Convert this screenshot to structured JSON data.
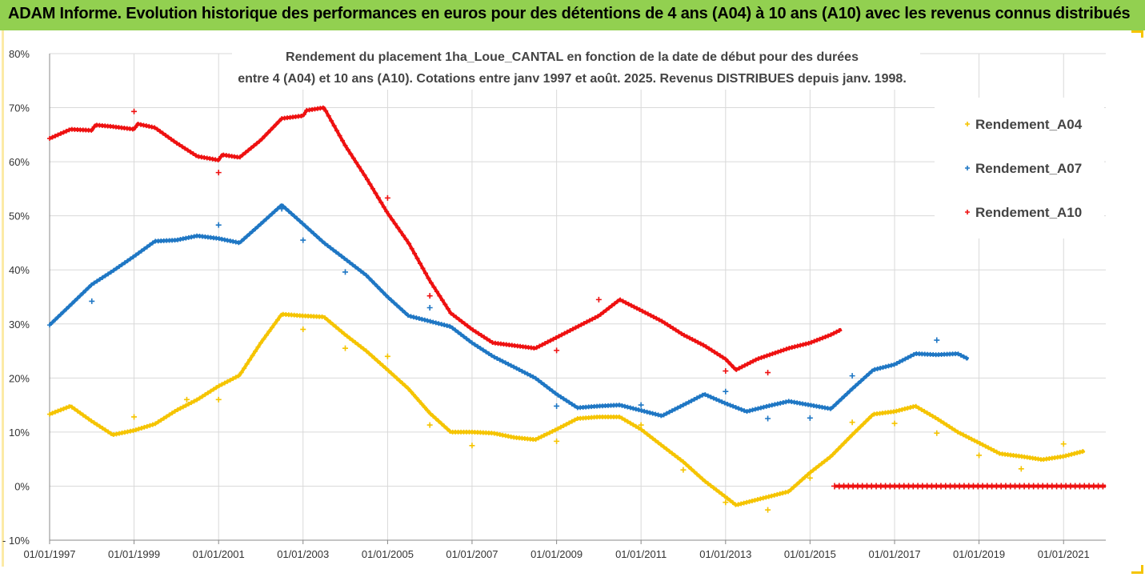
{
  "banner": {
    "title": "ADAM Informe. Evolution historique des performances en euros pour des détentions de 4 ans (A04) à 10 ans (A10) avec les revenus connus distribués"
  },
  "colors": {
    "banner_bg": "#92d050",
    "A04": "#f5c400",
    "A07": "#1f77c4",
    "A10": "#ee1111",
    "grid": "#d9d9d9"
  },
  "chart_data": {
    "type": "scatter",
    "title_lines": [
      "Rendement du placement 1ha_Loue_CANTAL en fonction de la date de début pour des durées",
      "entre 4 (A04) et 10 ans (A10). Cotations entre janv 1997 et août. 2025. Revenus DISTRIBUES depuis janv. 1998."
    ],
    "xlabel": "",
    "ylabel": "",
    "x_ticks": [
      "01/01/1997",
      "01/01/1999",
      "01/01/2001",
      "01/01/2003",
      "01/01/2005",
      "01/01/2007",
      "01/01/2009",
      "01/01/2011",
      "01/01/2013",
      "01/01/2015",
      "01/01/2017",
      "01/01/2019",
      "01/01/2021"
    ],
    "y_ticks": [
      "80%",
      "70%",
      "60%",
      "50%",
      "40%",
      "30%",
      "20%",
      "10%",
      "0%",
      "- 10%"
    ],
    "ylim": [
      -10,
      80
    ],
    "xlim": [
      "1997-01-01",
      "2022-01-01"
    ],
    "grid": true,
    "legend_position": "top-right",
    "series": [
      {
        "name": "Rendement_A04",
        "color": "#f5c400",
        "points": [
          [
            "1997-01-01",
            13.3
          ],
          [
            "1997-07-01",
            14.8
          ],
          [
            "1998-01-01",
            12.0
          ],
          [
            "1998-07-01",
            9.5
          ],
          [
            "1999-01-01",
            10.3
          ],
          [
            "1999-07-01",
            11.5
          ],
          [
            "2000-01-01",
            14.0
          ],
          [
            "2000-07-01",
            16.0
          ],
          [
            "2001-01-01",
            18.5
          ],
          [
            "2001-07-01",
            20.5
          ],
          [
            "2002-01-01",
            26.5
          ],
          [
            "2002-07-01",
            31.8
          ],
          [
            "2003-01-01",
            31.5
          ],
          [
            "2003-07-01",
            31.3
          ],
          [
            "2004-01-01",
            28.0
          ],
          [
            "2004-07-01",
            25.0
          ],
          [
            "2005-01-01",
            21.5
          ],
          [
            "2005-07-01",
            18.0
          ],
          [
            "2006-01-01",
            13.5
          ],
          [
            "2006-07-01",
            10.0
          ],
          [
            "2007-01-01",
            10.0
          ],
          [
            "2007-07-01",
            9.8
          ],
          [
            "2008-01-01",
            9.0
          ],
          [
            "2008-07-01",
            8.6
          ],
          [
            "2009-01-01",
            10.5
          ],
          [
            "2009-07-01",
            12.5
          ],
          [
            "2010-01-01",
            12.8
          ],
          [
            "2010-07-01",
            12.8
          ],
          [
            "2011-01-01",
            10.5
          ],
          [
            "2011-07-01",
            7.5
          ],
          [
            "2012-01-01",
            4.5
          ],
          [
            "2012-07-01",
            1.0
          ],
          [
            "2013-01-01",
            -2.0
          ],
          [
            "2013-04-01",
            -3.5
          ],
          [
            "2013-10-01",
            -2.5
          ],
          [
            "2014-07-01",
            -1.0
          ],
          [
            "2015-01-01",
            2.5
          ],
          [
            "2015-07-01",
            5.5
          ],
          [
            "2016-01-01",
            9.5
          ],
          [
            "2016-07-01",
            13.3
          ],
          [
            "2017-01-01",
            13.8
          ],
          [
            "2017-07-01",
            14.8
          ],
          [
            "2018-01-01",
            12.5
          ],
          [
            "2018-07-01",
            10.0
          ],
          [
            "2019-01-01",
            8.0
          ],
          [
            "2019-07-01",
            6.0
          ],
          [
            "2020-01-01",
            5.5
          ],
          [
            "2020-07-01",
            4.9
          ],
          [
            "2021-01-01",
            5.5
          ],
          [
            "2021-07-01",
            6.5
          ]
        ],
        "outliers": [
          [
            "1999-01-01",
            12.8
          ],
          [
            "2000-04-01",
            16.0
          ],
          [
            "2001-01-01",
            16.0
          ],
          [
            "2003-01-01",
            29.0
          ],
          [
            "2004-01-01",
            25.5
          ],
          [
            "2005-01-01",
            24.0
          ],
          [
            "2006-01-01",
            11.3
          ],
          [
            "2007-01-01",
            7.5
          ],
          [
            "2009-01-01",
            8.3
          ],
          [
            "2011-01-01",
            11.3
          ],
          [
            "2012-01-01",
            3.0
          ],
          [
            "2013-01-01",
            -3.0
          ],
          [
            "2014-01-01",
            -4.4
          ],
          [
            "2015-01-01",
            1.5
          ],
          [
            "2016-01-01",
            11.8
          ],
          [
            "2017-01-01",
            11.6
          ],
          [
            "2018-01-01",
            9.8
          ],
          [
            "2019-01-01",
            5.7
          ],
          [
            "2020-01-01",
            3.2
          ],
          [
            "2021-01-01",
            7.8
          ]
        ]
      },
      {
        "name": "Rendement_A07",
        "color": "#1f77c4",
        "points": [
          [
            "1997-01-01",
            29.8
          ],
          [
            "1997-07-01",
            33.5
          ],
          [
            "1998-01-01",
            37.3
          ],
          [
            "1998-07-01",
            39.8
          ],
          [
            "1999-01-01",
            42.5
          ],
          [
            "1999-07-01",
            45.3
          ],
          [
            "2000-01-01",
            45.5
          ],
          [
            "2000-07-01",
            46.3
          ],
          [
            "2001-01-01",
            45.8
          ],
          [
            "2001-07-01",
            45.0
          ],
          [
            "2002-01-01",
            48.5
          ],
          [
            "2002-07-01",
            52.0
          ],
          [
            "2003-01-01",
            48.5
          ],
          [
            "2003-07-01",
            45.0
          ],
          [
            "2004-01-01",
            42.0
          ],
          [
            "2004-07-01",
            39.0
          ],
          [
            "2005-01-01",
            35.0
          ],
          [
            "2005-07-01",
            31.5
          ],
          [
            "2006-01-01",
            30.5
          ],
          [
            "2006-07-01",
            29.5
          ],
          [
            "2007-01-01",
            26.5
          ],
          [
            "2007-07-01",
            24.0
          ],
          [
            "2008-01-01",
            22.0
          ],
          [
            "2008-07-01",
            20.0
          ],
          [
            "2009-01-01",
            17.0
          ],
          [
            "2009-07-01",
            14.5
          ],
          [
            "2010-01-01",
            14.8
          ],
          [
            "2010-07-01",
            15.0
          ],
          [
            "2011-01-01",
            14.0
          ],
          [
            "2011-07-01",
            13.0
          ],
          [
            "2012-01-01",
            15.0
          ],
          [
            "2012-07-01",
            17.0
          ],
          [
            "2013-01-01",
            15.3
          ],
          [
            "2013-07-01",
            13.8
          ],
          [
            "2014-01-01",
            14.8
          ],
          [
            "2014-07-01",
            15.7
          ],
          [
            "2015-01-01",
            15.0
          ],
          [
            "2015-07-01",
            14.3
          ],
          [
            "2016-01-01",
            18.0
          ],
          [
            "2016-07-01",
            21.5
          ],
          [
            "2017-01-01",
            22.5
          ],
          [
            "2017-07-01",
            24.5
          ],
          [
            "2018-01-01",
            24.3
          ],
          [
            "2018-07-01",
            24.5
          ],
          [
            "2018-10-01",
            23.5
          ]
        ],
        "outliers": [
          [
            "1998-01-01",
            34.2
          ],
          [
            "2001-01-01",
            48.3
          ],
          [
            "2002-07-01",
            51.3
          ],
          [
            "2003-01-01",
            45.5
          ],
          [
            "2004-01-01",
            39.6
          ],
          [
            "2006-01-01",
            33.0
          ],
          [
            "2009-01-01",
            14.8
          ],
          [
            "2011-01-01",
            15.0
          ],
          [
            "2013-01-01",
            17.5
          ],
          [
            "2014-01-01",
            12.5
          ],
          [
            "2015-01-01",
            12.6
          ],
          [
            "2016-01-01",
            20.4
          ],
          [
            "2018-01-01",
            27.0
          ]
        ]
      },
      {
        "name": "Rendement_A10",
        "color": "#ee1111",
        "points": [
          [
            "1997-01-01",
            64.3
          ],
          [
            "1997-07-01",
            66.0
          ],
          [
            "1998-01-01",
            65.8
          ],
          [
            "1998-02-01",
            66.8
          ],
          [
            "1998-07-01",
            66.5
          ],
          [
            "1999-01-01",
            66.0
          ],
          [
            "1999-02-01",
            67.0
          ],
          [
            "1999-07-01",
            66.3
          ],
          [
            "2000-01-01",
            63.5
          ],
          [
            "2000-07-01",
            61.0
          ],
          [
            "2001-01-01",
            60.3
          ],
          [
            "2001-02-01",
            61.3
          ],
          [
            "2001-07-01",
            60.8
          ],
          [
            "2002-01-01",
            64.0
          ],
          [
            "2002-07-01",
            68.0
          ],
          [
            "2003-01-01",
            68.5
          ],
          [
            "2003-02-01",
            69.5
          ],
          [
            "2003-07-01",
            70.0
          ],
          [
            "2004-01-01",
            63.0
          ],
          [
            "2004-07-01",
            57.0
          ],
          [
            "2005-01-01",
            50.5
          ],
          [
            "2005-07-01",
            45.0
          ],
          [
            "2006-01-01",
            38.0
          ],
          [
            "2006-07-01",
            32.0
          ],
          [
            "2007-01-01",
            29.0
          ],
          [
            "2007-07-01",
            26.5
          ],
          [
            "2008-01-01",
            26.0
          ],
          [
            "2008-07-01",
            25.5
          ],
          [
            "2009-01-01",
            27.5
          ],
          [
            "2009-07-01",
            29.5
          ],
          [
            "2010-01-01",
            31.5
          ],
          [
            "2010-07-01",
            34.5
          ],
          [
            "2011-01-01",
            32.5
          ],
          [
            "2011-07-01",
            30.5
          ],
          [
            "2012-01-01",
            28.0
          ],
          [
            "2012-07-01",
            26.0
          ],
          [
            "2013-01-01",
            23.5
          ],
          [
            "2013-04-01",
            21.5
          ],
          [
            "2013-10-01",
            23.5
          ],
          [
            "2014-07-01",
            25.5
          ],
          [
            "2015-01-01",
            26.5
          ],
          [
            "2015-07-01",
            28.0
          ],
          [
            "2015-10-01",
            29.0
          ]
        ],
        "outliers": [
          [
            "1999-01-01",
            69.3
          ],
          [
            "2001-01-01",
            58.0
          ],
          [
            "2005-01-01",
            53.3
          ],
          [
            "2006-01-01",
            35.2
          ],
          [
            "2009-01-01",
            25.1
          ],
          [
            "2010-01-01",
            34.5
          ],
          [
            "2013-01-01",
            21.3
          ],
          [
            "2014-01-01",
            21.0
          ]
        ],
        "zero_segment": {
          "from": "2015-08-01",
          "to": "2022-01-01",
          "value": 0
        }
      }
    ]
  }
}
